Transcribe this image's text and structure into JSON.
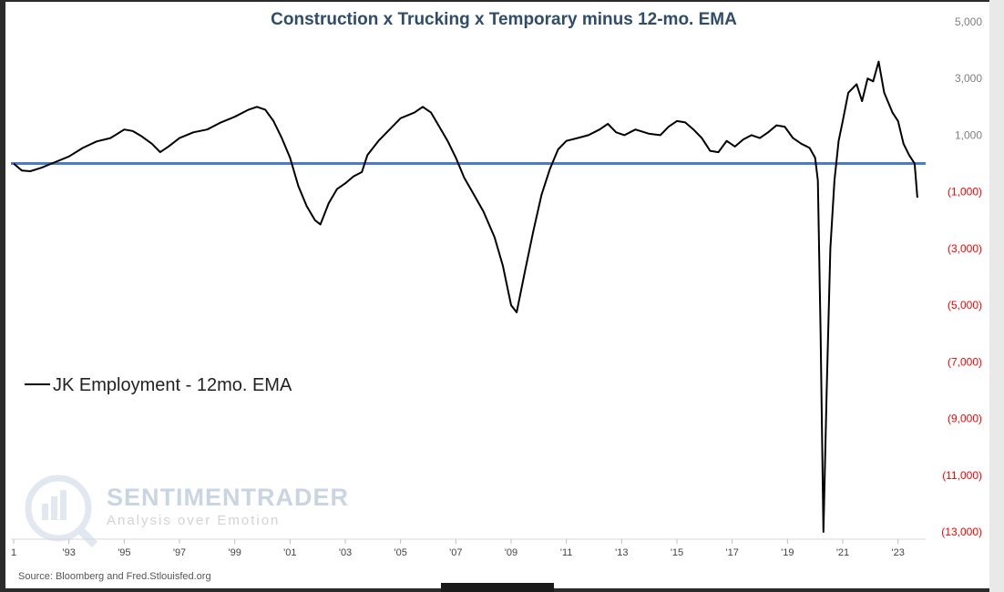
{
  "chart_data": {
    "type": "line",
    "title": "Construction x Trucking x Temporary minus 12-mo. EMA",
    "source": "Source: Bloomberg and Fred.Stlouisfed.org",
    "watermark": {
      "brand": "SENTIMENTRADER",
      "tagline": "Analysis over Emotion"
    },
    "legend": {
      "position": "left",
      "entries": [
        "JK Employment - 12mo. EMA"
      ]
    },
    "ylim": [
      -13000,
      5000
    ],
    "y_ticks": [
      {
        "value": 5000,
        "label": "5,000"
      },
      {
        "value": 3000,
        "label": "3,000"
      },
      {
        "value": 1000,
        "label": "1,000"
      },
      {
        "value": -1000,
        "label": "(1,000)"
      },
      {
        "value": -3000,
        "label": "(3,000)"
      },
      {
        "value": -5000,
        "label": "(5,000)"
      },
      {
        "value": -7000,
        "label": "(7,000)"
      },
      {
        "value": -9000,
        "label": "(9,000)"
      },
      {
        "value": -11000,
        "label": "(11,000)"
      },
      {
        "value": -13000,
        "label": "(13,000)"
      }
    ],
    "x_ticks": [
      {
        "value": 1991,
        "label": "1"
      },
      {
        "value": 1993,
        "label": "'93"
      },
      {
        "value": 1995,
        "label": "'95"
      },
      {
        "value": 1997,
        "label": "'97"
      },
      {
        "value": 1999,
        "label": "'99"
      },
      {
        "value": 2001,
        "label": "'01"
      },
      {
        "value": 2003,
        "label": "'03"
      },
      {
        "value": 2005,
        "label": "'05"
      },
      {
        "value": 2007,
        "label": "'07"
      },
      {
        "value": 2009,
        "label": "'09"
      },
      {
        "value": 2011,
        "label": "'11"
      },
      {
        "value": 2013,
        "label": "'13"
      },
      {
        "value": 2015,
        "label": "'15"
      },
      {
        "value": 2017,
        "label": "'17"
      },
      {
        "value": 2019,
        "label": "'19"
      },
      {
        "value": 2021,
        "label": "'21"
      },
      {
        "value": 2023,
        "label": "'23"
      }
    ],
    "xlim": [
      1990.9,
      2024.0
    ],
    "grid": false,
    "zero_line": {
      "value": 0,
      "color": "#4a7ec2"
    },
    "colors": {
      "positive_tick": "#7f7f7f",
      "negative_tick": "#ff0000",
      "series": "#000000",
      "title": "#2f4d6b"
    },
    "series": [
      {
        "name": "JK Employment - 12mo. EMA",
        "points": [
          [
            1991.0,
            0
          ],
          [
            1991.3,
            -250
          ],
          [
            1991.6,
            -270
          ],
          [
            1992.0,
            -150
          ],
          [
            1992.5,
            50
          ],
          [
            1993.0,
            250
          ],
          [
            1993.5,
            550
          ],
          [
            1994.0,
            780
          ],
          [
            1994.5,
            900
          ],
          [
            1995.0,
            1200
          ],
          [
            1995.3,
            1150
          ],
          [
            1995.6,
            980
          ],
          [
            1996.0,
            700
          ],
          [
            1996.3,
            400
          ],
          [
            1996.6,
            600
          ],
          [
            1997.0,
            900
          ],
          [
            1997.5,
            1100
          ],
          [
            1998.0,
            1200
          ],
          [
            1998.5,
            1450
          ],
          [
            1999.0,
            1650
          ],
          [
            1999.5,
            1900
          ],
          [
            1999.8,
            2000
          ],
          [
            2000.1,
            1900
          ],
          [
            2000.4,
            1500
          ],
          [
            2000.7,
            900
          ],
          [
            2001.0,
            200
          ],
          [
            2001.3,
            -800
          ],
          [
            2001.6,
            -1500
          ],
          [
            2001.9,
            -2000
          ],
          [
            2002.1,
            -2150
          ],
          [
            2002.4,
            -1400
          ],
          [
            2002.7,
            -900
          ],
          [
            2003.0,
            -700
          ],
          [
            2003.3,
            -450
          ],
          [
            2003.6,
            -300
          ],
          [
            2003.8,
            300
          ],
          [
            2004.2,
            800
          ],
          [
            2004.6,
            1200
          ],
          [
            2005.0,
            1600
          ],
          [
            2005.5,
            1800
          ],
          [
            2005.8,
            2000
          ],
          [
            2006.1,
            1800
          ],
          [
            2006.4,
            1300
          ],
          [
            2006.7,
            800
          ],
          [
            2007.0,
            200
          ],
          [
            2007.3,
            -500
          ],
          [
            2007.6,
            -1000
          ],
          [
            2008.0,
            -1700
          ],
          [
            2008.4,
            -2600
          ],
          [
            2008.7,
            -3600
          ],
          [
            2009.0,
            -5000
          ],
          [
            2009.2,
            -5250
          ],
          [
            2009.5,
            -3800
          ],
          [
            2009.8,
            -2400
          ],
          [
            2010.1,
            -1100
          ],
          [
            2010.4,
            -200
          ],
          [
            2010.7,
            500
          ],
          [
            2011.0,
            800
          ],
          [
            2011.4,
            900
          ],
          [
            2011.8,
            1000
          ],
          [
            2012.2,
            1200
          ],
          [
            2012.5,
            1400
          ],
          [
            2012.8,
            1100
          ],
          [
            2013.1,
            1000
          ],
          [
            2013.5,
            1200
          ],
          [
            2014.0,
            1050
          ],
          [
            2014.4,
            1000
          ],
          [
            2014.7,
            1300
          ],
          [
            2015.0,
            1500
          ],
          [
            2015.3,
            1450
          ],
          [
            2015.6,
            1200
          ],
          [
            2015.9,
            900
          ],
          [
            2016.2,
            450
          ],
          [
            2016.5,
            400
          ],
          [
            2016.8,
            800
          ],
          [
            2017.1,
            600
          ],
          [
            2017.4,
            850
          ],
          [
            2017.7,
            1000
          ],
          [
            2018.0,
            900
          ],
          [
            2018.3,
            1100
          ],
          [
            2018.6,
            1350
          ],
          [
            2018.9,
            1300
          ],
          [
            2019.2,
            900
          ],
          [
            2019.5,
            700
          ],
          [
            2019.8,
            550
          ],
          [
            2020.0,
            200
          ],
          [
            2020.1,
            -600
          ],
          [
            2020.2,
            -6000
          ],
          [
            2020.3,
            -13000
          ],
          [
            2020.42,
            -8000
          ],
          [
            2020.55,
            -3000
          ],
          [
            2020.7,
            -600
          ],
          [
            2020.85,
            800
          ],
          [
            2021.0,
            1500
          ],
          [
            2021.2,
            2500
          ],
          [
            2021.5,
            2800
          ],
          [
            2021.7,
            2200
          ],
          [
            2021.9,
            3000
          ],
          [
            2022.1,
            2900
          ],
          [
            2022.3,
            3600
          ],
          [
            2022.5,
            2500
          ],
          [
            2022.8,
            1800
          ],
          [
            2023.0,
            1500
          ],
          [
            2023.2,
            700
          ],
          [
            2023.4,
            300
          ],
          [
            2023.6,
            0
          ],
          [
            2023.7,
            -1200
          ]
        ]
      }
    ]
  }
}
